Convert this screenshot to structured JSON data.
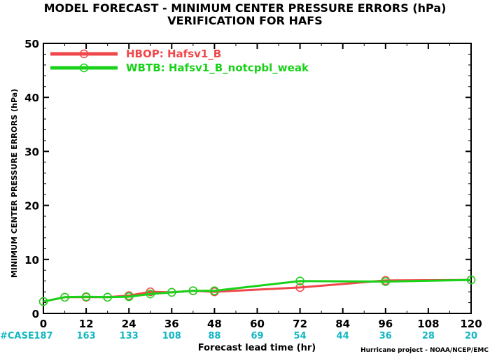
{
  "chart_data": {
    "type": "line",
    "title": "MODEL FORECAST - MINIMUM CENTER PRESSURE ERRORS (hPa)",
    "subtitle": "VERIFICATION FOR HAFS",
    "xlabel": "Forecast lead time (hr)",
    "ylabel": "MINIMUM CENTER PRESSURE ERRORS (hPa)",
    "xlim": [
      0,
      120
    ],
    "ylim": [
      0,
      50
    ],
    "x_ticks": [
      "0",
      "12",
      "24",
      "36",
      "48",
      "60",
      "72",
      "84",
      "96",
      "108",
      "120"
    ],
    "y_ticks": [
      "0",
      "10",
      "20",
      "30",
      "40",
      "50"
    ],
    "grid": false,
    "legend_position": "top-left",
    "case_prefix": "#CASE",
    "case_counts": [
      {
        "x": 0,
        "n": "187"
      },
      {
        "x": 12,
        "n": "163"
      },
      {
        "x": 24,
        "n": "133"
      },
      {
        "x": 36,
        "n": "108"
      },
      {
        "x": 48,
        "n": "88"
      },
      {
        "x": 60,
        "n": "69"
      },
      {
        "x": 72,
        "n": "54"
      },
      {
        "x": 84,
        "n": "44"
      },
      {
        "x": 96,
        "n": "36"
      },
      {
        "x": 108,
        "n": "28"
      },
      {
        "x": 120,
        "n": "20"
      }
    ],
    "credit": "Hurricane project - NOAA/NCEP/EMC",
    "series": [
      {
        "name": "HBOP: Hafsv1_B",
        "color": "#f0474b",
        "x": [
          0,
          6,
          12,
          18,
          24,
          30,
          36,
          42,
          48,
          72,
          96,
          120
        ],
        "y": [
          2.2,
          3.0,
          3.0,
          3.0,
          3.3,
          4.0,
          3.9,
          4.2,
          4.0,
          4.8,
          6.1,
          6.2
        ]
      },
      {
        "name": "WBTB: Hafsv1_B_notcpbl_weak",
        "color": "#19d219",
        "x": [
          0,
          6,
          12,
          18,
          24,
          30,
          36,
          42,
          48,
          72,
          96,
          120
        ],
        "y": [
          2.2,
          3.0,
          3.1,
          3.0,
          3.1,
          3.6,
          3.9,
          4.2,
          4.2,
          6.0,
          5.9,
          6.2
        ]
      }
    ]
  }
}
